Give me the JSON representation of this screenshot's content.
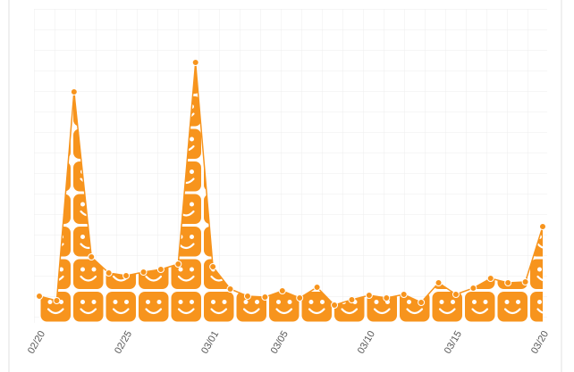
{
  "chart_data": {
    "type": "area",
    "categories": [
      "02/20",
      null,
      null,
      null,
      null,
      "02/25",
      null,
      null,
      null,
      null,
      "03/01",
      null,
      null,
      null,
      "03/05",
      null,
      null,
      null,
      null,
      "03/10",
      null,
      null,
      null,
      null,
      "03/15",
      null,
      null,
      null,
      null,
      "03/20"
    ],
    "values": [
      30,
      25,
      259,
      74,
      56,
      53,
      57,
      60,
      66,
      292,
      63,
      38,
      30,
      29,
      36,
      28,
      40,
      20,
      26,
      31,
      28,
      32,
      23,
      45,
      32,
      39,
      50,
      45,
      46,
      108
    ],
    "color": "#f7941d",
    "ylim": [
      0,
      352
    ]
  }
}
